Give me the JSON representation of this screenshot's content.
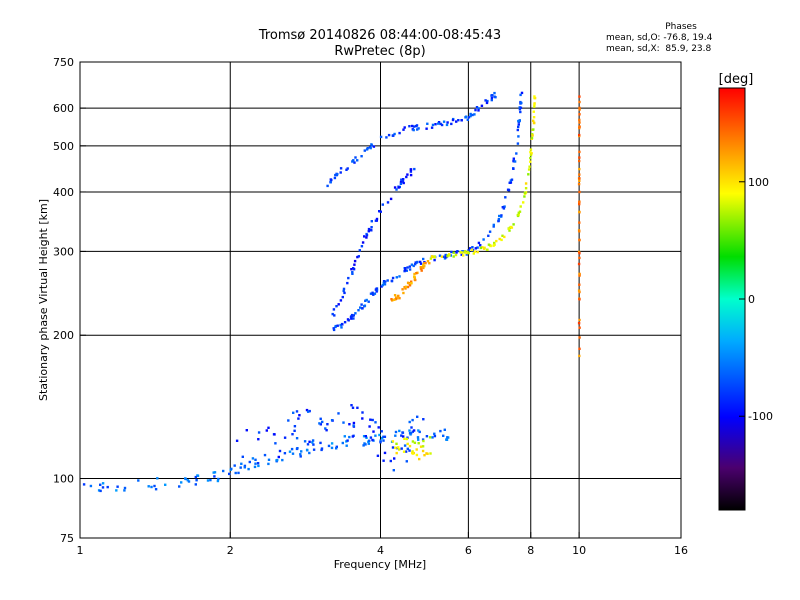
{
  "header": {
    "line1": "Tromsø 20140826 08:44:00-08:45:43",
    "line2": "RwPretec (8p)"
  },
  "phase_box": {
    "title": "Phases",
    "line_o": "mean, sd,O: -76.8, 19.4",
    "line_x": "mean, sd,X:  85.9, 23.8"
  },
  "colorbar": {
    "unit": "[deg]",
    "ticks": [
      "100",
      "0",
      "-100"
    ],
    "tick_values": [
      100,
      0,
      -100
    ],
    "range": [
      -180,
      180
    ],
    "colormap": "rainbow (black-purple-blue-cyan-green-yellow-red)"
  },
  "chart_data": {
    "type": "scatter",
    "xlabel": "Frequency [MHz]",
    "ylabel": "Stationary phase Virtual Height [km]",
    "xscale": "log",
    "yscale": "log",
    "xlim": [
      1,
      16
    ],
    "ylim": [
      75,
      750
    ],
    "xticks": [
      1,
      2,
      4,
      6,
      8,
      10,
      16
    ],
    "xtick_labels": [
      "1",
      "2",
      "4",
      "6",
      "8",
      "10",
      "16"
    ],
    "yticks": [
      75,
      100,
      200,
      300,
      400,
      500,
      600,
      750
    ],
    "ytick_labels": [
      "75",
      "100",
      "200",
      "300",
      "400",
      "500",
      "600",
      "750"
    ],
    "grid": true,
    "vgrid_x": [
      2,
      4,
      6,
      8,
      10
    ],
    "hgrid_y": [
      100,
      200,
      300,
      400,
      500,
      600
    ],
    "traces": [
      {
        "id": "o-f2",
        "phase": -76,
        "spread": 0.012,
        "points": [
          [
            3.2,
            205
          ],
          [
            3.4,
            212
          ],
          [
            3.6,
            225
          ],
          [
            3.8,
            240
          ],
          [
            4.0,
            255
          ],
          [
            4.3,
            265
          ],
          [
            4.6,
            280
          ],
          [
            5.0,
            290
          ],
          [
            5.5,
            295
          ],
          [
            6.0,
            300
          ],
          [
            6.5,
            320
          ],
          [
            7.0,
            360
          ],
          [
            7.3,
            420
          ],
          [
            7.5,
            500
          ],
          [
            7.6,
            580
          ],
          [
            7.65,
            640
          ]
        ]
      },
      {
        "id": "x-f2",
        "phase": 85,
        "spread": 0.01,
        "points": [
          [
            5.0,
            290
          ],
          [
            5.5,
            295
          ],
          [
            6.0,
            298
          ],
          [
            6.5,
            305
          ],
          [
            7.0,
            320
          ],
          [
            7.5,
            350
          ],
          [
            7.8,
            400
          ],
          [
            8.0,
            480
          ],
          [
            8.1,
            560
          ],
          [
            8.15,
            640
          ]
        ]
      },
      {
        "id": "x-f2-knee",
        "phase": 125,
        "spread": 0.015,
        "points": [
          [
            4.2,
            235
          ],
          [
            4.4,
            245
          ],
          [
            4.6,
            260
          ],
          [
            4.8,
            275
          ],
          [
            5.0,
            285
          ]
        ]
      },
      {
        "id": "multi-2",
        "phase": -85,
        "spread": 0.014,
        "points": [
          [
            3.2,
            220
          ],
          [
            3.4,
            250
          ],
          [
            3.6,
            295
          ],
          [
            3.8,
            335
          ],
          [
            4.1,
            380
          ],
          [
            4.4,
            420
          ],
          [
            4.7,
            450
          ]
        ]
      },
      {
        "id": "multi-3",
        "phase": -75,
        "spread": 0.012,
        "points": [
          [
            3.1,
            405
          ],
          [
            3.3,
            440
          ],
          [
            3.6,
            470
          ],
          [
            4.0,
            520
          ],
          [
            4.6,
            545
          ],
          [
            5.0,
            550
          ],
          [
            5.5,
            560
          ],
          [
            6.0,
            575
          ],
          [
            6.4,
            610
          ],
          [
            6.8,
            640
          ]
        ]
      },
      {
        "id": "o-e",
        "phase": -60,
        "spread": 0.025,
        "points": [
          [
            1.0,
            96
          ],
          [
            1.2,
            97
          ],
          [
            1.6,
            98
          ],
          [
            1.8,
            100
          ],
          [
            2.0,
            103
          ],
          [
            2.2,
            108
          ],
          [
            2.5,
            112
          ],
          [
            2.8,
            115
          ],
          [
            3.1,
            118
          ],
          [
            3.5,
            120
          ],
          [
            4.0,
            122
          ],
          [
            4.5,
            123
          ],
          [
            5.0,
            124
          ],
          [
            5.5,
            124
          ]
        ]
      },
      {
        "id": "es-cloud",
        "phase": -80,
        "spread": 0.09,
        "points": [
          [
            2.1,
            115
          ],
          [
            2.4,
            120
          ],
          [
            2.7,
            125
          ],
          [
            3.0,
            130
          ],
          [
            3.3,
            132
          ],
          [
            3.6,
            128
          ],
          [
            3.9,
            118
          ],
          [
            4.2,
            112
          ],
          [
            4.5,
            120
          ],
          [
            4.8,
            125
          ]
        ]
      },
      {
        "id": "x-e",
        "phase": 90,
        "spread": 0.04,
        "points": [
          [
            4.2,
            115
          ],
          [
            4.5,
            120
          ],
          [
            4.8,
            112
          ],
          [
            5.0,
            118
          ]
        ]
      },
      {
        "id": "spur-10",
        "phase": 140,
        "spread": 0.004,
        "points": [
          [
            10.0,
            180
          ],
          [
            10.0,
            250
          ],
          [
            10.0,
            330
          ],
          [
            10.0,
            420
          ],
          [
            10.0,
            530
          ],
          [
            10.0,
            640
          ]
        ]
      }
    ]
  }
}
